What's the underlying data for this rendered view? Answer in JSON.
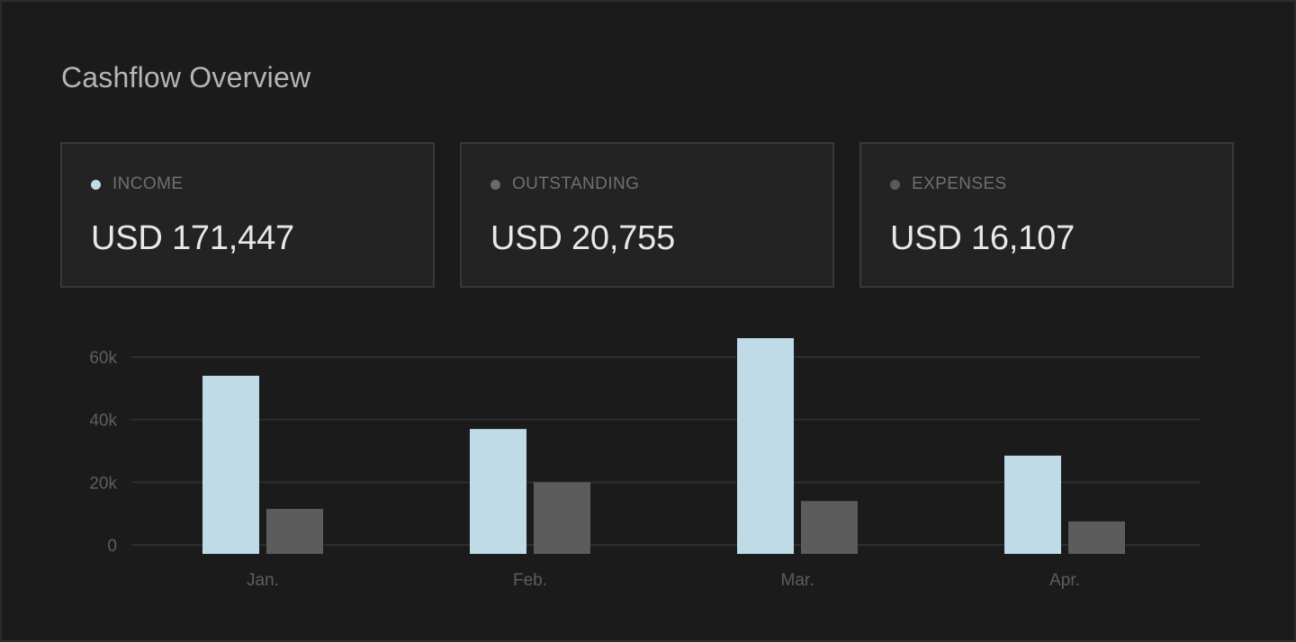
{
  "title": "Cashflow Overview",
  "colors": {
    "income": "#bfdbe8",
    "outstanding": "#6a6a6a",
    "expenses": "#5a5a5a",
    "bar_other": "#5c5c5c",
    "grid": "#2e2e2e",
    "axis_text": "#5e5e5e"
  },
  "cards": [
    {
      "label": "INCOME",
      "value": "USD 171,447",
      "dot_color": "#bfdbe8"
    },
    {
      "label": "OUTSTANDING",
      "value": "USD 20,755",
      "dot_color": "#6a6a6a"
    },
    {
      "label": "EXPENSES",
      "value": "USD 16,107",
      "dot_color": "#5a5a5a"
    }
  ],
  "chart_data": {
    "type": "bar",
    "categories": [
      "Jan.",
      "Feb.",
      "Mar.",
      "Apr."
    ],
    "series": [
      {
        "values": [
          54000,
          37000,
          66000,
          28500
        ]
      },
      {
        "values": [
          11500,
          20000,
          14000,
          7500
        ]
      }
    ],
    "y_ticks": [
      {
        "value": 0,
        "label": "0"
      },
      {
        "value": 20000,
        "label": "20k"
      },
      {
        "value": 40000,
        "label": "40k"
      },
      {
        "value": 60000,
        "label": "60k"
      }
    ],
    "ylim": [
      0,
      60000
    ],
    "grid": true
  }
}
